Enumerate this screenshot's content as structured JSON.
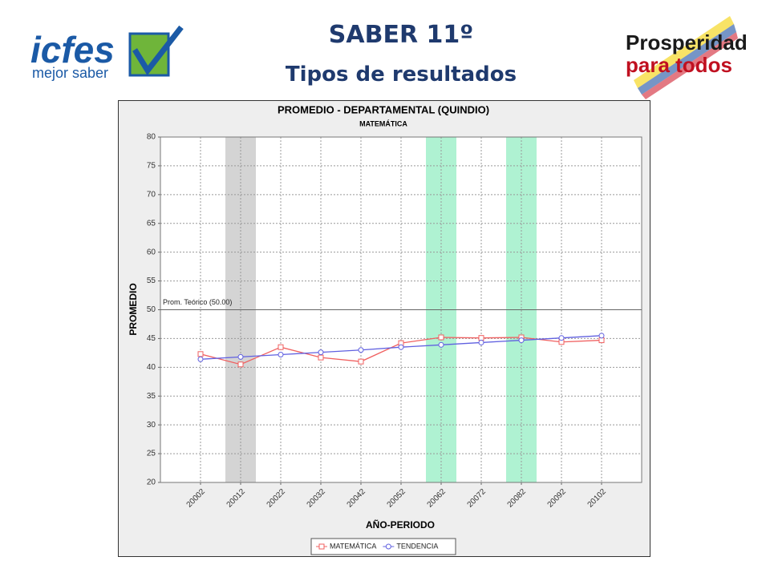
{
  "header": {
    "title": "SABER 11º",
    "subtitle": "Tipos de resultados",
    "left_logo": {
      "brand": "icfes",
      "tagline": "mejor saber"
    },
    "right_logo": {
      "line1": "Prosperidad",
      "line2": "para todos"
    }
  },
  "chart_data": {
    "type": "line",
    "title": "PROMEDIO - DEPARTAMENTAL (QUINDIO)",
    "subtitle": "MATEMÁTICA",
    "x_label": "AÑO-PERIODO",
    "y_label": "PROMEDIO",
    "categories": [
      "20002",
      "20012",
      "20022",
      "20032",
      "20042",
      "20052",
      "20062",
      "20072",
      "20082",
      "20092",
      "20102"
    ],
    "series": [
      {
        "name": "MATEMÁTICA",
        "color": "#f06060",
        "marker": "square",
        "values": [
          42.3,
          40.5,
          43.5,
          41.7,
          41.0,
          44.2,
          45.2,
          45.1,
          45.2,
          44.4,
          44.7
        ]
      },
      {
        "name": "TENDENCIA",
        "color": "#6060e0",
        "marker": "circle",
        "values": [
          41.4,
          41.8,
          42.2,
          42.6,
          43.0,
          43.5,
          43.9,
          44.3,
          44.7,
          45.1,
          45.5
        ]
      }
    ],
    "ylim": [
      20,
      80
    ],
    "yticks": [
      20,
      25,
      30,
      35,
      40,
      45,
      50,
      55,
      60,
      65,
      70,
      75,
      80
    ],
    "grid": true,
    "reference_line": {
      "value": 50,
      "label": "Prom. Teórico (50.00)"
    },
    "highlight_bands": [
      {
        "category": "20012",
        "color": "#d4d4d4"
      },
      {
        "category": "20062",
        "color": "#aff2d2"
      },
      {
        "category": "20082",
        "color": "#aff2d2"
      }
    ],
    "legend": "bottom"
  }
}
